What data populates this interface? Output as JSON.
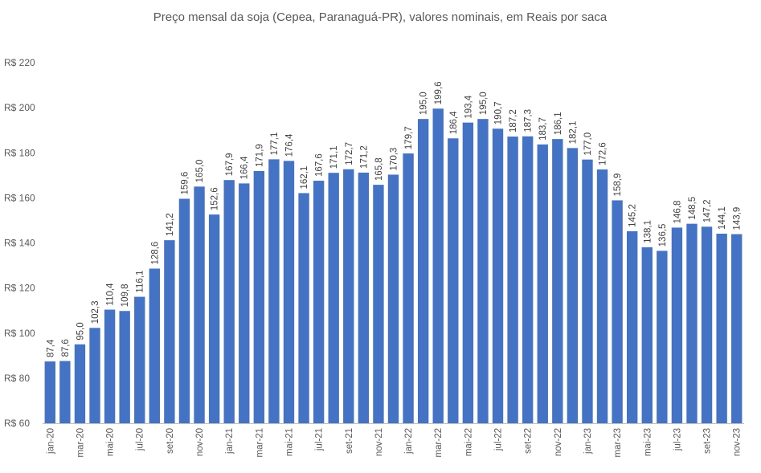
{
  "chart_data": {
    "type": "bar",
    "title": "Preço mensal da soja (Cepea, Paranaguá-PR), valores nominais, em Reais por saca",
    "xlabel": "",
    "ylabel": "",
    "ylim": [
      60,
      220
    ],
    "ytick_values": [
      60,
      80,
      100,
      120,
      140,
      160,
      180,
      200,
      220
    ],
    "ytick_labels": [
      "R$ 60",
      "R$ 80",
      "R$ 100",
      "R$ 120",
      "R$ 140",
      "R$ 160",
      "R$ 180",
      "R$ 200",
      "R$ 220"
    ],
    "grid": false,
    "legend": "none",
    "bar_color": "#4472C4",
    "categories": [
      "jan-20",
      "fev-20",
      "mar-20",
      "abr-20",
      "mai-20",
      "jun-20",
      "jul-20",
      "ago-20",
      "set-20",
      "out-20",
      "nov-20",
      "dez-20",
      "jan-21",
      "fev-21",
      "mar-21",
      "abr-21",
      "mai-21",
      "jun-21",
      "jul-21",
      "ago-21",
      "set-21",
      "out-21",
      "nov-21",
      "dez-21",
      "jan-22",
      "fev-22",
      "mar-22",
      "abr-22",
      "mai-22",
      "jun-22",
      "jul-22",
      "ago-22",
      "set-22",
      "out-22",
      "nov-22",
      "dez-22",
      "jan-23",
      "fev-23",
      "mar-23",
      "abr-23",
      "mai-23",
      "jun-23",
      "jul-23",
      "ago-23",
      "set-23",
      "out-23",
      "nov-23"
    ],
    "tick_labels_shown": [
      "jan-20",
      "mar-20",
      "mai-20",
      "jul-20",
      "set-20",
      "nov-20",
      "jan-21",
      "mar-21",
      "mai-21",
      "jul-21",
      "set-21",
      "nov-21",
      "jan-22",
      "mar-22",
      "mai-22",
      "jul-22",
      "set-22",
      "nov-22",
      "jan-23",
      "mar-23",
      "mai-23",
      "jul-23",
      "set-23",
      "nov-23"
    ],
    "values": [
      87.4,
      87.6,
      95.0,
      102.3,
      110.4,
      109.8,
      116.1,
      128.6,
      141.2,
      159.6,
      165.0,
      152.6,
      167.9,
      166.4,
      171.9,
      177.1,
      176.4,
      162.1,
      167.6,
      171.1,
      172.7,
      171.2,
      165.8,
      170.3,
      179.7,
      195.0,
      199.6,
      186.4,
      193.4,
      195.0,
      190.7,
      187.2,
      187.3,
      183.7,
      186.1,
      182.1,
      177.0,
      172.6,
      158.9,
      145.2,
      138.1,
      136.5,
      146.8,
      148.5,
      147.2,
      144.1,
      143.9
    ],
    "value_labels": [
      "87,4",
      "87,6",
      "95,0",
      "102,3",
      "110,4",
      "109,8",
      "116,1",
      "128,6",
      "141,2",
      "159,6",
      "165,0",
      "152,6",
      "167,9",
      "166,4",
      "171,9",
      "177,1",
      "176,4",
      "162,1",
      "167,6",
      "171,1",
      "172,7",
      "171,2",
      "165,8",
      "170,3",
      "179,7",
      "195,0",
      "199,6",
      "186,4",
      "193,4",
      "195,0",
      "190,7",
      "187,2",
      "187,3",
      "183,7",
      "186,1",
      "182,1",
      "177,0",
      "172,6",
      "158,9",
      "145,2",
      "138,1",
      "136,5",
      "146,8",
      "148,5",
      "147,2",
      "144,1",
      "143,9"
    ]
  }
}
